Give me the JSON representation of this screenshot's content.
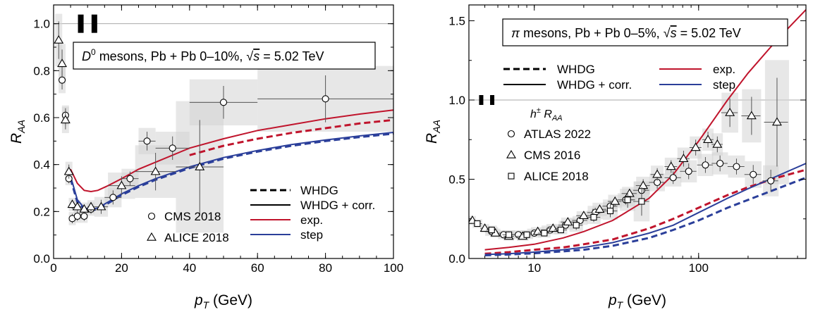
{
  "chart_data": [
    {
      "type": "line",
      "title": "D0 mesons, Pb + Pb 0–10%, √s = 5.02 TeV",
      "xlabel": "pT (GeV)",
      "ylabel": "RAA",
      "xlim": [
        0,
        100
      ],
      "ylim": [
        0,
        1.08
      ],
      "x_scale": "linear",
      "grid": false,
      "legend_position": "bottom-right",
      "box": {
        "system": "D",
        "sup": "0",
        "mid": " mesons, Pb + Pb 0–10%, ",
        "energy": " = 5.02 TeV"
      },
      "x_ticks": [
        {
          "v": 0,
          "label": "0"
        },
        {
          "v": 20,
          "label": "20"
        },
        {
          "v": 40,
          "label": "40"
        },
        {
          "v": 60,
          "label": "60"
        },
        {
          "v": 80,
          "label": "80"
        },
        {
          "v": 100,
          "label": "100"
        }
      ],
      "y_ticks": [
        {
          "v": 0,
          "label": "0.0"
        },
        {
          "v": 0.2,
          "label": "0.2"
        },
        {
          "v": 0.4,
          "label": "0.4"
        },
        {
          "v": 0.6,
          "label": "0.6"
        },
        {
          "v": 0.8,
          "label": "0.8"
        },
        {
          "v": 1.0,
          "label": "1.0"
        }
      ],
      "series": [
        {
          "name": "exp. (WHDG + corr.)",
          "color": "#c0142c",
          "dash": false,
          "x": [
            5,
            7,
            9,
            11,
            13,
            16,
            20,
            25,
            30,
            40,
            50,
            60,
            70,
            80,
            90,
            100
          ],
          "y": [
            0.38,
            0.32,
            0.29,
            0.285,
            0.29,
            0.31,
            0.34,
            0.38,
            0.41,
            0.47,
            0.51,
            0.545,
            0.57,
            0.595,
            0.615,
            0.632
          ]
        },
        {
          "name": "exp. (WHDG)",
          "color": "#c0142c",
          "dash": true,
          "x": [
            40,
            50,
            60,
            70,
            80,
            90,
            100
          ],
          "y": [
            0.44,
            0.48,
            0.51,
            0.535,
            0.555,
            0.575,
            0.59
          ]
        },
        {
          "name": "step (WHDG + corr.)",
          "color": "#2b3f9a",
          "dash": false,
          "x": [
            5,
            7,
            9,
            11,
            13,
            16,
            20,
            25,
            30,
            40,
            50,
            60,
            70,
            80,
            90,
            100
          ],
          "y": [
            0.35,
            0.25,
            0.215,
            0.21,
            0.215,
            0.24,
            0.275,
            0.31,
            0.34,
            0.39,
            0.43,
            0.46,
            0.485,
            0.505,
            0.522,
            0.537
          ]
        },
        {
          "name": "step (WHDG)",
          "color": "#2b3f9a",
          "dash": true,
          "x": [
            5,
            7,
            9,
            11,
            13,
            16,
            20,
            25,
            30,
            40,
            50,
            60,
            70,
            80,
            90,
            100
          ],
          "y": [
            0.34,
            0.24,
            0.21,
            0.205,
            0.21,
            0.235,
            0.27,
            0.305,
            0.335,
            0.385,
            0.425,
            0.455,
            0.48,
            0.5,
            0.517,
            0.532
          ]
        }
      ],
      "markers": [
        {
          "name": "CMS 2018",
          "shape": "circle",
          "points": [
            {
              "x": 2.5,
              "y": 0.76,
              "ey": 0.04,
              "ex": 0.5
            },
            {
              "x": 3.5,
              "y": 0.61,
              "ey": 0.03,
              "ex": 0.5
            },
            {
              "x": 4.5,
              "y": 0.34,
              "ey": 0.02,
              "ex": 0.5
            },
            {
              "x": 5.5,
              "y": 0.17,
              "ey": 0.02,
              "ex": 0.5
            },
            {
              "x": 7,
              "y": 0.18,
              "ey": 0.02,
              "ex": 1
            },
            {
              "x": 9,
              "y": 0.18,
              "ey": 0.02,
              "ex": 1
            },
            {
              "x": 11,
              "y": 0.21,
              "ey": 0.02,
              "ex": 1
            },
            {
              "x": 17.5,
              "y": 0.26,
              "ey": 0.03,
              "ex": 2.5
            },
            {
              "x": 22.5,
              "y": 0.34,
              "ey": 0.03,
              "ex": 2.5
            },
            {
              "x": 27.5,
              "y": 0.5,
              "ey": 0.04,
              "ex": 2.5
            },
            {
              "x": 35,
              "y": 0.47,
              "ey": 0.05,
              "ex": 5
            },
            {
              "x": 50,
              "y": 0.665,
              "ey": 0.07,
              "ex": 10
            },
            {
              "x": 80,
              "y": 0.68,
              "ey": 0.1,
              "ex": 20
            }
          ]
        },
        {
          "name": "ALICE 2018",
          "shape": "triangle",
          "points": [
            {
              "x": 1.5,
              "y": 0.93,
              "ey": 0.08,
              "ex": 0.5
            },
            {
              "x": 2.5,
              "y": 0.83,
              "ey": 0.06,
              "ex": 0.5
            },
            {
              "x": 3.5,
              "y": 0.59,
              "ey": 0.04,
              "ex": 0.5
            },
            {
              "x": 4.5,
              "y": 0.37,
              "ey": 0.03,
              "ex": 0.5
            },
            {
              "x": 5.5,
              "y": 0.23,
              "ey": 0.02,
              "ex": 0.5
            },
            {
              "x": 7,
              "y": 0.22,
              "ey": 0.02,
              "ex": 1
            },
            {
              "x": 9,
              "y": 0.21,
              "ey": 0.02,
              "ex": 1
            },
            {
              "x": 11,
              "y": 0.22,
              "ey": 0.02,
              "ex": 1
            },
            {
              "x": 14,
              "y": 0.22,
              "ey": 0.03,
              "ex": 2
            },
            {
              "x": 20,
              "y": 0.31,
              "ey": 0.04,
              "ex": 4
            },
            {
              "x": 30,
              "y": 0.37,
              "ey": 0.08,
              "ex": 6
            },
            {
              "x": 43,
              "y": 0.39,
              "ey": 0.2,
              "ex": 7
            }
          ]
        }
      ],
      "legend": {
        "lines": [
          {
            "label": "WHDG",
            "dash": true,
            "color": "#000000"
          },
          {
            "label": "WHDG + corr.",
            "dash": false,
            "color": "#000000"
          },
          {
            "label": "exp.",
            "dash": false,
            "color": "#c0142c"
          },
          {
            "label": "step",
            "dash": false,
            "color": "#2b3f9a"
          }
        ],
        "markers": [
          {
            "label": "CMS 2018",
            "shape": "circle"
          },
          {
            "label": "ALICE 2018",
            "shape": "triangle"
          }
        ]
      }
    },
    {
      "type": "line",
      "title": "π mesons, Pb + Pb 0–5%, √s = 5.02 TeV",
      "xlabel": "pT (GeV)",
      "ylabel": "RAA",
      "xlim": [
        4,
        450
      ],
      "ylim": [
        0,
        1.6
      ],
      "x_scale": "log",
      "grid": false,
      "legend_position": "top-center",
      "box": {
        "system": "π",
        "sup": "",
        "mid": " mesons, Pb + Pb 0–5%, ",
        "energy": " = 5.02 TeV"
      },
      "x_ticks": [
        {
          "v": 10,
          "label": "10"
        },
        {
          "v": 100,
          "label": "100"
        }
      ],
      "y_ticks": [
        {
          "v": 0,
          "label": "0.0"
        },
        {
          "v": 0.5,
          "label": "0.5"
        },
        {
          "v": 1.0,
          "label": "1.0"
        },
        {
          "v": 1.5,
          "label": "1.5"
        }
      ],
      "series": [
        {
          "name": "exp. (WHDG + corr.)",
          "color": "#c0142c",
          "dash": false,
          "x": [
            5,
            7,
            10,
            15,
            20,
            30,
            50,
            70,
            100,
            150,
            200,
            300,
            450
          ],
          "y": [
            0.055,
            0.07,
            0.09,
            0.13,
            0.17,
            0.24,
            0.38,
            0.53,
            0.74,
            1.0,
            1.17,
            1.38,
            1.57
          ]
        },
        {
          "name": "exp. (WHDG)",
          "color": "#c0142c",
          "dash": true,
          "x": [
            5,
            7,
            10,
            15,
            20,
            30,
            50,
            70,
            100,
            150,
            200,
            300,
            450
          ],
          "y": [
            0.03,
            0.04,
            0.055,
            0.07,
            0.09,
            0.12,
            0.19,
            0.25,
            0.32,
            0.4,
            0.45,
            0.51,
            0.56
          ]
        },
        {
          "name": "step (WHDG + corr.)",
          "color": "#2b3f9a",
          "dash": false,
          "x": [
            5,
            7,
            10,
            15,
            20,
            30,
            50,
            70,
            100,
            150,
            200,
            300,
            450
          ],
          "y": [
            0.025,
            0.03,
            0.04,
            0.055,
            0.07,
            0.1,
            0.16,
            0.21,
            0.29,
            0.38,
            0.44,
            0.52,
            0.6
          ]
        },
        {
          "name": "step (WHDG)",
          "color": "#2b3f9a",
          "dash": true,
          "x": [
            5,
            7,
            10,
            15,
            20,
            30,
            50,
            70,
            100,
            150,
            200,
            300,
            450
          ],
          "y": [
            0.02,
            0.025,
            0.033,
            0.045,
            0.055,
            0.08,
            0.13,
            0.18,
            0.24,
            0.32,
            0.37,
            0.44,
            0.51
          ]
        }
      ],
      "markers": [
        {
          "name": "ATLAS 2022",
          "shape": "circle",
          "points": [
            {
              "x": 5.5,
              "y": 0.17,
              "ey": 0.02,
              "ex": 0.5
            },
            {
              "x": 6.5,
              "y": 0.15,
              "ey": 0.02,
              "ex": 0.5
            },
            {
              "x": 8,
              "y": 0.15,
              "ey": 0.02,
              "ex": 1
            },
            {
              "x": 10,
              "y": 0.16,
              "ey": 0.02,
              "ex": 1
            },
            {
              "x": 12.5,
              "y": 0.18,
              "ey": 0.02,
              "ex": 1.5
            },
            {
              "x": 15.5,
              "y": 0.21,
              "ey": 0.02,
              "ex": 1.5
            },
            {
              "x": 19,
              "y": 0.24,
              "ey": 0.02,
              "ex": 2
            },
            {
              "x": 23.5,
              "y": 0.29,
              "ey": 0.03,
              "ex": 2.5
            },
            {
              "x": 29,
              "y": 0.33,
              "ey": 0.03,
              "ex": 3
            },
            {
              "x": 36,
              "y": 0.37,
              "ey": 0.03,
              "ex": 4
            },
            {
              "x": 45,
              "y": 0.43,
              "ey": 0.04,
              "ex": 5
            },
            {
              "x": 56,
              "y": 0.48,
              "ey": 0.04,
              "ex": 6
            },
            {
              "x": 70,
              "y": 0.51,
              "ey": 0.04,
              "ex": 8
            },
            {
              "x": 87,
              "y": 0.55,
              "ey": 0.05,
              "ex": 10
            },
            {
              "x": 110,
              "y": 0.59,
              "ey": 0.05,
              "ex": 12
            },
            {
              "x": 135,
              "y": 0.6,
              "ey": 0.05,
              "ex": 15
            },
            {
              "x": 170,
              "y": 0.58,
              "ey": 0.05,
              "ex": 20
            },
            {
              "x": 215,
              "y": 0.53,
              "ey": 0.06,
              "ex": 25
            },
            {
              "x": 275,
              "y": 0.49,
              "ey": 0.07,
              "ex": 30
            }
          ]
        },
        {
          "name": "CMS 2016",
          "shape": "triangle",
          "points": [
            {
              "x": 4.2,
              "y": 0.24,
              "ey": 0.02,
              "ex": 0.2
            },
            {
              "x": 5,
              "y": 0.19,
              "ey": 0.02,
              "ex": 0.3
            },
            {
              "x": 5.8,
              "y": 0.16,
              "ey": 0.02,
              "ex": 0.4
            },
            {
              "x": 7,
              "y": 0.14,
              "ey": 0.02,
              "ex": 0.5
            },
            {
              "x": 8.5,
              "y": 0.14,
              "ey": 0.02,
              "ex": 0.7
            },
            {
              "x": 10.5,
              "y": 0.17,
              "ey": 0.02,
              "ex": 1
            },
            {
              "x": 13,
              "y": 0.19,
              "ey": 0.02,
              "ex": 1.2
            },
            {
              "x": 16,
              "y": 0.23,
              "ey": 0.02,
              "ex": 1.5
            },
            {
              "x": 20,
              "y": 0.27,
              "ey": 0.02,
              "ex": 2
            },
            {
              "x": 25,
              "y": 0.31,
              "ey": 0.03,
              "ex": 2.5
            },
            {
              "x": 31,
              "y": 0.36,
              "ey": 0.03,
              "ex": 3
            },
            {
              "x": 38,
              "y": 0.41,
              "ey": 0.03,
              "ex": 4
            },
            {
              "x": 46,
              "y": 0.46,
              "ey": 0.04,
              "ex": 4.5
            },
            {
              "x": 56,
              "y": 0.53,
              "ey": 0.04,
              "ex": 5
            },
            {
              "x": 68,
              "y": 0.58,
              "ey": 0.04,
              "ex": 6
            },
            {
              "x": 81,
              "y": 0.63,
              "ey": 0.05,
              "ex": 7
            },
            {
              "x": 96,
              "y": 0.7,
              "ey": 0.05,
              "ex": 8
            },
            {
              "x": 114,
              "y": 0.75,
              "ey": 0.05,
              "ex": 9
            },
            {
              "x": 130,
              "y": 0.72,
              "ey": 0.05,
              "ex": 10
            },
            {
              "x": 155,
              "y": 0.92,
              "ey": 0.09,
              "ex": 18
            },
            {
              "x": 210,
              "y": 0.9,
              "ey": 0.12,
              "ex": 28
            },
            {
              "x": 300,
              "y": 0.86,
              "ey": 0.28,
              "ex": 50
            }
          ]
        },
        {
          "name": "ALICE 2018",
          "shape": "square",
          "points": [
            {
              "x": 4.5,
              "y": 0.22,
              "ey": 0.02,
              "ex": 0.3
            },
            {
              "x": 5.5,
              "y": 0.18,
              "ey": 0.02,
              "ex": 0.4
            },
            {
              "x": 7,
              "y": 0.15,
              "ey": 0.02,
              "ex": 0.6
            },
            {
              "x": 9,
              "y": 0.15,
              "ey": 0.02,
              "ex": 0.8
            },
            {
              "x": 11.5,
              "y": 0.16,
              "ey": 0.02,
              "ex": 1
            },
            {
              "x": 14.5,
              "y": 0.18,
              "ey": 0.02,
              "ex": 1.3
            },
            {
              "x": 18,
              "y": 0.21,
              "ey": 0.03,
              "ex": 1.7
            },
            {
              "x": 23,
              "y": 0.26,
              "ey": 0.03,
              "ex": 2.2
            },
            {
              "x": 29,
              "y": 0.3,
              "ey": 0.04,
              "ex": 3
            },
            {
              "x": 37,
              "y": 0.37,
              "ey": 0.05,
              "ex": 4
            },
            {
              "x": 45,
              "y": 0.36,
              "ey": 0.09,
              "ex": 5
            }
          ]
        }
      ],
      "legend": {
        "lines": [
          {
            "label": "WHDG",
            "dash": true,
            "color": "#000000"
          },
          {
            "label": "WHDG + corr.",
            "dash": false,
            "color": "#000000"
          },
          {
            "label": "exp.",
            "dash": false,
            "color": "#c0142c"
          },
          {
            "label": "step",
            "dash": false,
            "color": "#2b3f9a"
          }
        ],
        "marker_title": "h± RAA",
        "markers": [
          {
            "label": "ATLAS 2022",
            "shape": "circle"
          },
          {
            "label": "CMS 2016",
            "shape": "triangle"
          },
          {
            "label": "ALICE 2018",
            "shape": "square"
          }
        ]
      }
    }
  ]
}
